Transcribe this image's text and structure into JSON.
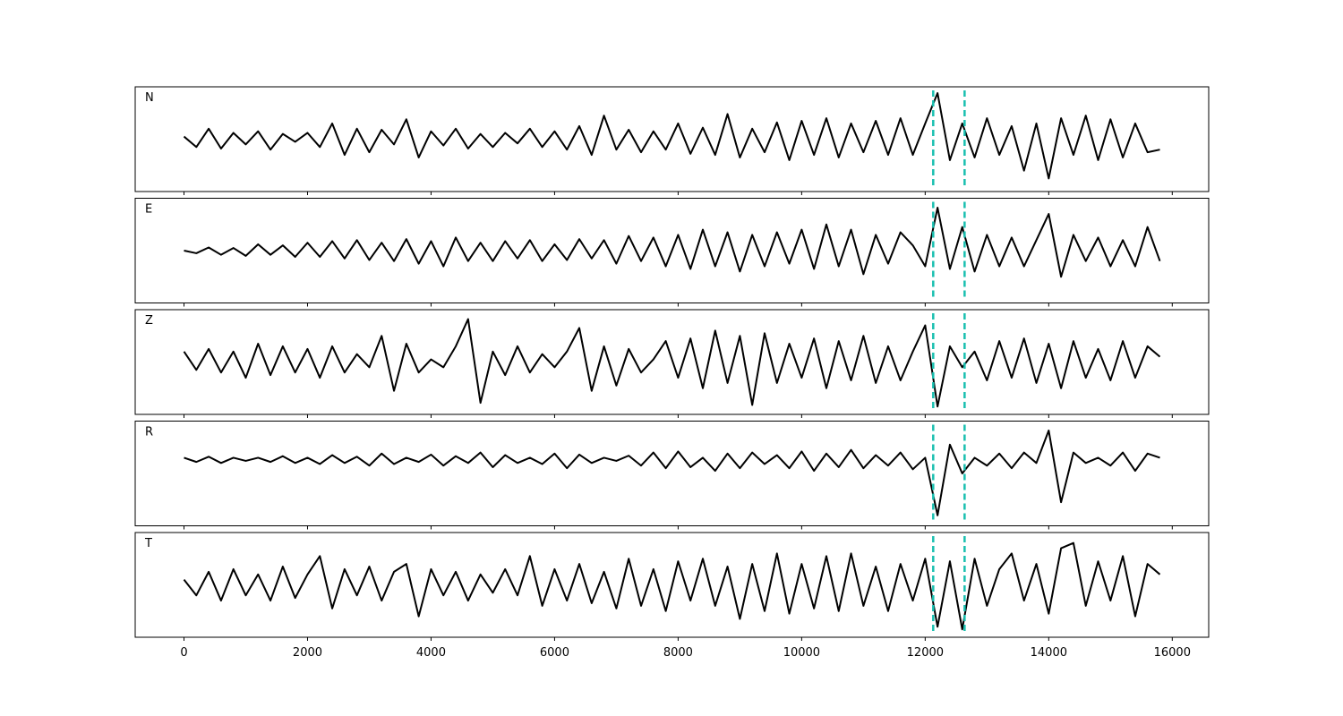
{
  "chart_data": {
    "type": "line",
    "layout": "stacked",
    "x": [
      0,
      200,
      400,
      600,
      800,
      1000,
      1200,
      1400,
      1600,
      1800,
      2000,
      2200,
      2400,
      2600,
      2800,
      3000,
      3200,
      3400,
      3600,
      3800,
      4000,
      4200,
      4400,
      4600,
      4800,
      5000,
      5200,
      5400,
      5600,
      5800,
      6000,
      6200,
      6400,
      6600,
      6800,
      7000,
      7200,
      7400,
      7600,
      7800,
      8000,
      8200,
      8400,
      8600,
      8800,
      9000,
      9200,
      9400,
      9600,
      9800,
      10000,
      10200,
      10400,
      10600,
      10800,
      11000,
      11200,
      11400,
      11600,
      11800,
      12000,
      12200,
      12400,
      12600,
      12800,
      13000,
      13200,
      13400,
      13600,
      13800,
      14000,
      14200,
      14400,
      14600,
      14800,
      15000,
      15200,
      15400,
      15600,
      15800
    ],
    "xlim": [
      -790,
      16590
    ],
    "xticks": [
      0,
      2000,
      4000,
      6000,
      8000,
      10000,
      12000,
      14000,
      16000
    ],
    "ylim": [
      -1,
      1
    ],
    "series": [
      {
        "name": "N",
        "color": "#000000",
        "values": [
          0.05,
          -0.15,
          0.2,
          -0.18,
          0.12,
          -0.1,
          0.15,
          -0.2,
          0.1,
          -0.05,
          0.12,
          -0.15,
          0.3,
          -0.3,
          0.2,
          -0.25,
          0.18,
          -0.1,
          0.38,
          -0.35,
          0.15,
          -0.12,
          0.2,
          -0.18,
          0.1,
          -0.15,
          0.12,
          -0.08,
          0.2,
          -0.15,
          0.15,
          -0.2,
          0.25,
          -0.3,
          0.45,
          -0.2,
          0.18,
          -0.25,
          0.15,
          -0.2,
          0.3,
          -0.28,
          0.22,
          -0.3,
          0.48,
          -0.35,
          0.2,
          -0.25,
          0.32,
          -0.4,
          0.35,
          -0.3,
          0.4,
          -0.35,
          0.3,
          -0.25,
          0.35,
          -0.3,
          0.4,
          -0.3,
          0.3,
          0.88,
          -0.4,
          0.3,
          -0.35,
          0.4,
          -0.3,
          0.25,
          -0.6,
          0.3,
          -0.75,
          0.4,
          -0.3,
          0.45,
          -0.4,
          0.38,
          -0.35,
          0.3,
          -0.25,
          -0.2
        ]
      },
      {
        "name": "E",
        "color": "#000000",
        "values": [
          0.0,
          -0.05,
          0.06,
          -0.08,
          0.05,
          -0.1,
          0.12,
          -0.08,
          0.1,
          -0.12,
          0.15,
          -0.12,
          0.18,
          -0.15,
          0.2,
          -0.18,
          0.15,
          -0.2,
          0.22,
          -0.25,
          0.18,
          -0.3,
          0.25,
          -0.2,
          0.15,
          -0.2,
          0.18,
          -0.15,
          0.2,
          -0.2,
          0.12,
          -0.18,
          0.22,
          -0.15,
          0.2,
          -0.25,
          0.28,
          -0.2,
          0.25,
          -0.3,
          0.3,
          -0.35,
          0.4,
          -0.3,
          0.35,
          -0.4,
          0.3,
          -0.3,
          0.35,
          -0.25,
          0.4,
          -0.35,
          0.5,
          -0.3,
          0.4,
          -0.45,
          0.3,
          -0.25,
          0.35,
          0.1,
          -0.3,
          0.82,
          -0.35,
          0.45,
          -0.4,
          0.3,
          -0.3,
          0.25,
          -0.3,
          0.2,
          0.7,
          -0.5,
          0.3,
          -0.2,
          0.25,
          -0.3,
          0.2,
          -0.3,
          0.45,
          -0.2
        ]
      },
      {
        "name": "Z",
        "color": "#000000",
        "values": [
          0.2,
          -0.15,
          0.25,
          -0.2,
          0.2,
          -0.3,
          0.35,
          -0.25,
          0.3,
          -0.2,
          0.25,
          -0.3,
          0.3,
          -0.2,
          0.15,
          -0.1,
          0.5,
          -0.55,
          0.35,
          -0.2,
          0.05,
          -0.1,
          0.3,
          0.82,
          -0.78,
          0.2,
          -0.25,
          0.3,
          -0.2,
          0.15,
          -0.1,
          0.2,
          0.65,
          -0.55,
          0.3,
          -0.45,
          0.25,
          -0.2,
          0.05,
          0.4,
          -0.3,
          0.45,
          -0.5,
          0.6,
          -0.4,
          0.5,
          -0.82,
          0.55,
          -0.4,
          0.35,
          -0.3,
          0.45,
          -0.5,
          0.4,
          -0.35,
          0.5,
          -0.4,
          0.3,
          -0.35,
          0.2,
          0.7,
          -0.85,
          0.3,
          -0.1,
          0.2,
          -0.35,
          0.4,
          -0.3,
          0.45,
          -0.4,
          0.35,
          -0.5,
          0.4,
          -0.3,
          0.25,
          -0.35,
          0.4,
          -0.3,
          0.3,
          0.1
        ]
      },
      {
        "name": "R",
        "color": "#000000",
        "values": [
          0.3,
          0.22,
          0.32,
          0.2,
          0.3,
          0.24,
          0.3,
          0.22,
          0.33,
          0.2,
          0.3,
          0.18,
          0.35,
          0.2,
          0.32,
          0.15,
          0.38,
          0.18,
          0.3,
          0.22,
          0.36,
          0.15,
          0.33,
          0.2,
          0.4,
          0.12,
          0.35,
          0.2,
          0.3,
          0.18,
          0.38,
          0.1,
          0.36,
          0.2,
          0.3,
          0.24,
          0.34,
          0.15,
          0.4,
          0.1,
          0.42,
          0.12,
          0.3,
          0.05,
          0.38,
          0.1,
          0.4,
          0.18,
          0.35,
          0.1,
          0.42,
          0.05,
          0.38,
          0.12,
          0.45,
          0.1,
          0.35,
          0.15,
          0.4,
          0.08,
          0.3,
          -0.8,
          0.55,
          0.0,
          0.3,
          0.15,
          0.38,
          0.1,
          0.4,
          0.2,
          0.82,
          -0.55,
          0.4,
          0.2,
          0.3,
          0.15,
          0.4,
          0.05,
          0.38,
          0.3
        ]
      },
      {
        "name": "T",
        "color": "#000000",
        "values": [
          0.1,
          -0.2,
          0.25,
          -0.3,
          0.3,
          -0.2,
          0.2,
          -0.3,
          0.35,
          -0.25,
          0.2,
          0.55,
          -0.45,
          0.3,
          -0.2,
          0.35,
          -0.3,
          0.25,
          0.4,
          -0.6,
          0.3,
          -0.2,
          0.25,
          -0.3,
          0.2,
          -0.15,
          0.3,
          -0.2,
          0.55,
          -0.4,
          0.3,
          -0.3,
          0.4,
          -0.35,
          0.25,
          -0.45,
          0.5,
          -0.4,
          0.3,
          -0.5,
          0.45,
          -0.3,
          0.5,
          -0.4,
          0.35,
          -0.65,
          0.4,
          -0.5,
          0.6,
          -0.55,
          0.4,
          -0.45,
          0.55,
          -0.5,
          0.6,
          -0.4,
          0.35,
          -0.5,
          0.4,
          -0.3,
          0.5,
          -0.8,
          0.45,
          -0.85,
          0.5,
          -0.4,
          0.3,
          0.6,
          -0.3,
          0.4,
          -0.55,
          0.7,
          0.8,
          -0.4,
          0.45,
          -0.3,
          0.55,
          -0.6,
          0.4,
          0.2
        ]
      }
    ],
    "vlines": {
      "values": [
        12130,
        12638
      ],
      "color": "#1abfb0",
      "style": "dashed"
    }
  }
}
